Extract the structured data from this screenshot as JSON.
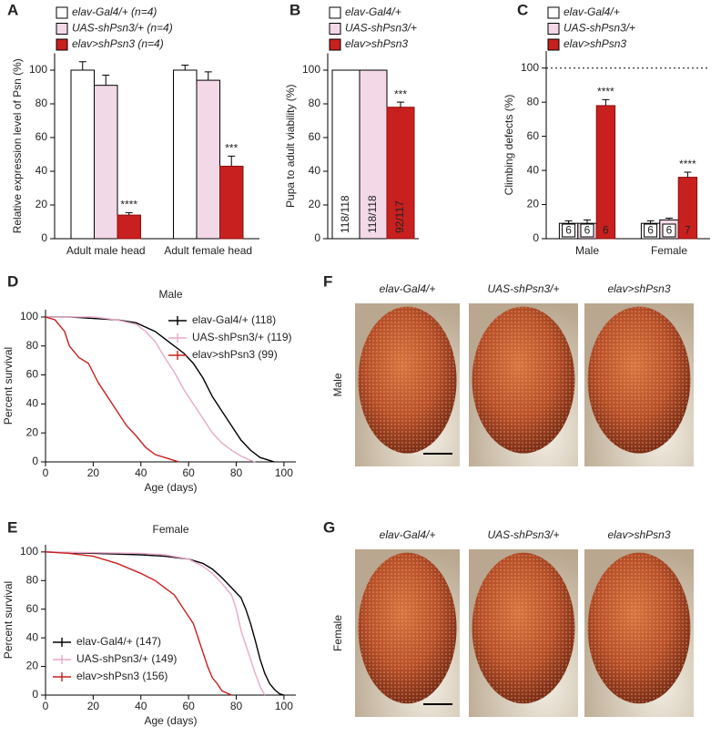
{
  "chart_data": [
    {
      "type": "bar",
      "label": "A",
      "ylabel": "Relative expression level of Psn (%)",
      "categories": [
        "Adult male head",
        "Adult female head"
      ],
      "series": [
        {
          "name": "elav-Gal4/+ (n=4)",
          "color": "#ffffff",
          "values": [
            100,
            100
          ],
          "errors": [
            5,
            3
          ]
        },
        {
          "name": "UAS-shPsn3/+ (n=4)",
          "color": "#f3d9e8",
          "values": [
            91,
            94
          ],
          "errors": [
            6,
            5
          ]
        },
        {
          "name": "elav>shPsn3 (n=4)",
          "color": "#c8201e",
          "values": [
            14,
            43
          ],
          "errors": [
            1.5,
            6
          ],
          "significance": [
            "****",
            "***"
          ]
        }
      ],
      "ylim": [
        0,
        110
      ],
      "yticks": [
        0,
        20,
        40,
        60,
        80,
        100
      ],
      "legend": "top-left"
    },
    {
      "type": "bar",
      "label": "B",
      "ylabel": "Pupa to adult viability (%)",
      "categories": [
        null
      ],
      "series": [
        {
          "name": "elav-Gal4/+",
          "color": "#ffffff",
          "values": [
            100
          ],
          "n_labels": [
            "118/118"
          ]
        },
        {
          "name": "UAS-shPsn3/+",
          "color": "#f3d9e8",
          "values": [
            100
          ],
          "n_labels": [
            "118/118"
          ]
        },
        {
          "name": "elav>shPsn3",
          "color": "#c8201e",
          "values": [
            78
          ],
          "errors": [
            3
          ],
          "n_labels": [
            "92/117"
          ],
          "significance": [
            "***"
          ]
        }
      ],
      "ylim": [
        0,
        110
      ],
      "yticks": [
        0,
        20,
        40,
        60,
        80,
        100
      ],
      "legend": "top-left"
    },
    {
      "type": "bar",
      "label": "C",
      "ylabel": "Climbing defects (%)",
      "categories": [
        "Male",
        "Female"
      ],
      "series": [
        {
          "name": "elav-Gal4/+",
          "color": "#ffffff",
          "values": [
            9,
            9
          ],
          "errors": [
            1.5,
            1.5
          ],
          "n_labels": [
            "6",
            "6"
          ]
        },
        {
          "name": "UAS-shPsn3/+",
          "color": "#f3d9e8",
          "values": [
            9,
            11
          ],
          "errors": [
            2,
            1
          ],
          "n_labels": [
            "6",
            "6"
          ]
        },
        {
          "name": "elav>shPsn3",
          "color": "#c8201e",
          "values": [
            78,
            36
          ],
          "errors": [
            3.5,
            3
          ],
          "n_labels": [
            "6",
            "7"
          ],
          "significance": [
            "****",
            "****"
          ]
        }
      ],
      "reference_line": 100,
      "ylim": [
        0,
        110
      ],
      "yticks": [
        0,
        20,
        40,
        60,
        80,
        100
      ],
      "legend": "top-left"
    },
    {
      "type": "line",
      "label": "D",
      "title": "Male",
      "xlabel": "Age (days)",
      "ylabel": "Percent survival",
      "series": [
        {
          "name": "elav-Gal4/+ (118)",
          "color": "#000000",
          "x": [
            0,
            10,
            20,
            30,
            38,
            42,
            46,
            50,
            54,
            58,
            62,
            66,
            70,
            74,
            78,
            82,
            86,
            90,
            94,
            96
          ],
          "values": [
            100,
            100,
            99,
            98,
            96,
            93,
            90,
            85,
            80,
            75,
            68,
            58,
            45,
            35,
            25,
            15,
            8,
            3,
            1,
            0
          ]
        },
        {
          "name": "UAS-shPsn3/+ (119)",
          "color": "#e7a9c9",
          "x": [
            0,
            20,
            30,
            38,
            42,
            46,
            50,
            54,
            58,
            62,
            66,
            70,
            74,
            78,
            82,
            86,
            88
          ],
          "values": [
            100,
            100,
            98,
            95,
            90,
            83,
            72,
            62,
            50,
            40,
            30,
            20,
            13,
            8,
            4,
            1,
            0
          ]
        },
        {
          "name": "elav>shPsn3 (99)",
          "color": "#c8201e",
          "x": [
            0,
            4,
            8,
            10,
            14,
            18,
            22,
            26,
            30,
            34,
            38,
            42,
            46,
            50,
            54,
            56
          ],
          "values": [
            100,
            98,
            90,
            80,
            72,
            68,
            55,
            45,
            35,
            25,
            18,
            10,
            5,
            3,
            1,
            0
          ]
        }
      ],
      "xlim": [
        0,
        105
      ],
      "xticks": [
        0,
        20,
        40,
        60,
        80,
        100
      ],
      "ylim": [
        0,
        105
      ],
      "yticks": [
        0,
        20,
        40,
        60,
        80,
        100
      ],
      "legend": "top-right"
    },
    {
      "type": "line",
      "label": "E",
      "title": "Female",
      "xlabel": "Age (days)",
      "ylabel": "Percent survival",
      "series": [
        {
          "name": "elav-Gal4/+ (147)",
          "color": "#000000",
          "x": [
            0,
            20,
            40,
            50,
            60,
            66,
            70,
            74,
            78,
            82,
            84,
            86,
            88,
            90,
            92,
            94,
            96,
            98,
            100
          ],
          "values": [
            100,
            99,
            98,
            97,
            95,
            92,
            88,
            82,
            75,
            68,
            60,
            50,
            38,
            25,
            15,
            8,
            4,
            1,
            0
          ]
        },
        {
          "name": "UAS-shPsn3/+ (149)",
          "color": "#e7a9c9",
          "x": [
            0,
            40,
            50,
            60,
            66,
            70,
            74,
            78,
            80,
            82,
            84,
            86,
            88,
            90,
            92
          ],
          "values": [
            100,
            99,
            98,
            95,
            90,
            85,
            78,
            70,
            60,
            45,
            35,
            25,
            15,
            6,
            0
          ]
        },
        {
          "name": "elav>shPsn3 (156)",
          "color": "#c8201e",
          "x": [
            0,
            10,
            20,
            30,
            40,
            46,
            50,
            54,
            58,
            62,
            64,
            66,
            68,
            70,
            72,
            74,
            78
          ],
          "values": [
            100,
            99,
            97,
            92,
            85,
            80,
            75,
            70,
            60,
            50,
            40,
            30,
            20,
            12,
            8,
            3,
            0
          ]
        }
      ],
      "xlim": [
        0,
        105
      ],
      "xticks": [
        0,
        20,
        40,
        60,
        80,
        100
      ],
      "ylim": [
        0,
        105
      ],
      "yticks": [
        0,
        20,
        40,
        60,
        80,
        100
      ],
      "legend": "bottom-left"
    }
  ],
  "photo_panels": [
    {
      "label": "F",
      "row_label": "Male",
      "columns": [
        "elav-Gal4/+",
        "UAS-shPsn3/+",
        "elav>shPsn3"
      ]
    },
    {
      "label": "G",
      "row_label": "Female",
      "columns": [
        "elav-Gal4/+",
        "UAS-shPsn3/+",
        "elav>shPsn3"
      ]
    }
  ]
}
